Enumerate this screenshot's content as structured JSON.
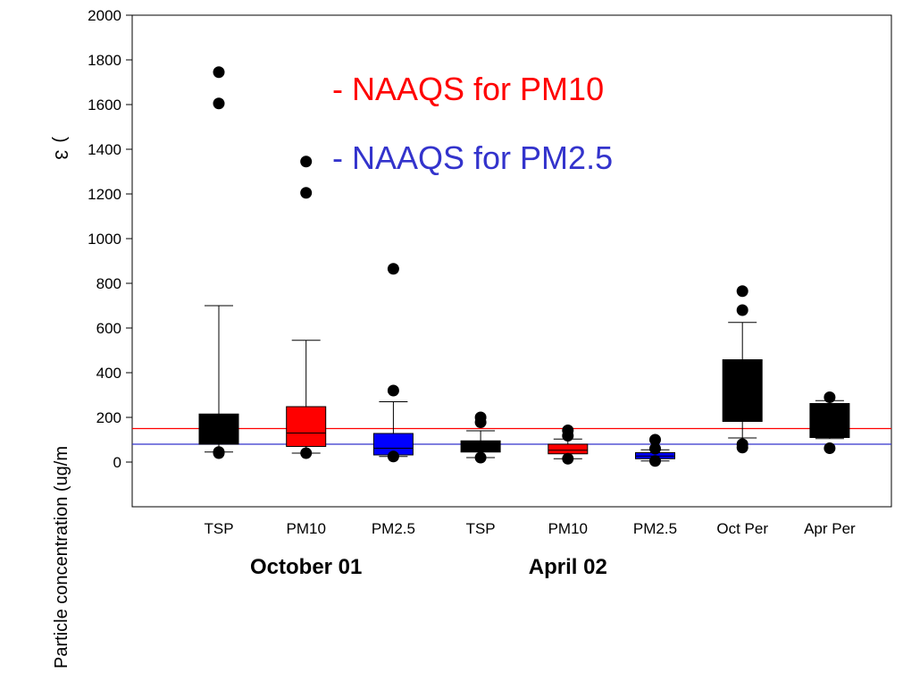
{
  "chart_data": {
    "type": "box",
    "title": "",
    "ylabel": "Particle concentration (ug/m",
    "ylabel_superscript": "3",
    "ylabel_close": ")",
    "ylim": [
      -200,
      2000
    ],
    "yticks": [
      0,
      200,
      400,
      600,
      800,
      1000,
      1200,
      1400,
      1600,
      1800,
      2000
    ],
    "grid": false,
    "categories": [
      "TSP",
      "PM10",
      "PM2.5",
      "TSP",
      "PM10",
      "PM2.5",
      "Oct Per",
      "Apr Per"
    ],
    "group_labels": [
      {
        "label": "October 01",
        "center_index": 1
      },
      {
        "label": "April 02",
        "center_index": 4
      }
    ],
    "boxes": [
      {
        "category": "TSP",
        "color": "#000000",
        "whisker_low": 45,
        "q1": 80,
        "median": 85,
        "q3": 215,
        "whisker_high": 700,
        "outliers": [
          1745,
          1605,
          45,
          40
        ]
      },
      {
        "category": "PM10",
        "color": "#ff0000",
        "whisker_low": 40,
        "q1": 70,
        "median": 130,
        "q3": 248,
        "whisker_high": 545,
        "outliers": [
          1345,
          1205,
          40
        ]
      },
      {
        "category": "PM2.5",
        "color": "#0000ff",
        "whisker_low": 25,
        "q1": 32,
        "median": 62,
        "q3": 128,
        "whisker_high": 270,
        "outliers": [
          865,
          320,
          25
        ]
      },
      {
        "category": "TSP",
        "color": "#000000",
        "whisker_low": 20,
        "q1": 45,
        "median": 72,
        "q3": 95,
        "whisker_high": 140,
        "outliers": [
          200,
          178,
          20
        ]
      },
      {
        "category": "PM10",
        "color": "#ff0000",
        "whisker_low": 15,
        "q1": 37,
        "median": 53,
        "q3": 80,
        "whisker_high": 103,
        "outliers": [
          142,
          118,
          15
        ]
      },
      {
        "category": "PM2.5",
        "color": "#0000ff",
        "whisker_low": 5,
        "q1": 15,
        "median": 27,
        "q3": 42,
        "whisker_high": 55,
        "outliers": [
          100,
          60,
          5
        ]
      },
      {
        "category": "Oct Per",
        "color": "#000000",
        "whisker_low": 108,
        "q1": 182,
        "median": 190,
        "q3": 458,
        "whisker_high": 625,
        "outliers": [
          765,
          680,
          80,
          65
        ]
      },
      {
        "category": "Apr Per",
        "color": "#000000",
        "whisker_low": 105,
        "q1": 110,
        "median": 190,
        "q3": 262,
        "whisker_high": 275,
        "outliers": [
          290,
          62
        ]
      }
    ],
    "reference_lines": [
      {
        "label": "- NAAQS for PM10",
        "value": 150,
        "color": "#ff0000"
      },
      {
        "label": "- NAAQS for PM2.5",
        "value": 80,
        "color": "#3333cc"
      }
    ]
  }
}
